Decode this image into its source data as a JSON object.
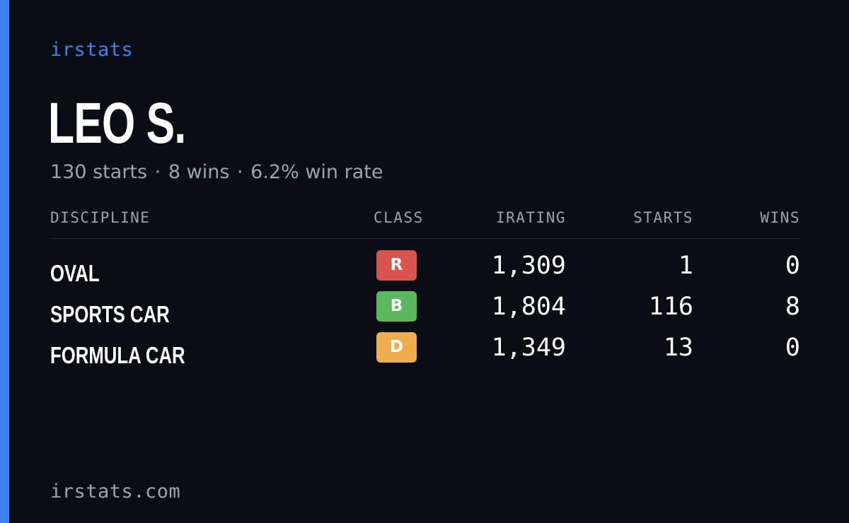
{
  "brand": "irstats",
  "player": {
    "name": "LEO S.",
    "starts": "130 starts",
    "wins": "8 wins",
    "win_rate": "6.2% win rate",
    "separator": "·"
  },
  "table": {
    "headers": {
      "discipline": "DISCIPLINE",
      "class": "CLASS",
      "irating": "IRATING",
      "starts": "STARTS",
      "wins": "WINS"
    },
    "rows": [
      {
        "discipline": "OVAL",
        "class": "R",
        "class_color": "#d9534f",
        "irating": "1,309",
        "starts": "1",
        "wins": "0"
      },
      {
        "discipline": "SPORTS CAR",
        "class": "B",
        "class_color": "#5cb85c",
        "irating": "1,804",
        "starts": "116",
        "wins": "8"
      },
      {
        "discipline": "FORMULA CAR",
        "class": "D",
        "class_color": "#f0ad4e",
        "irating": "1,349",
        "starts": "13",
        "wins": "0"
      }
    ]
  },
  "footer": "irstats.com",
  "colors": {
    "background": "#0a0d14",
    "accent": "#3b82f6",
    "muted_text": "#9aa3b2"
  }
}
